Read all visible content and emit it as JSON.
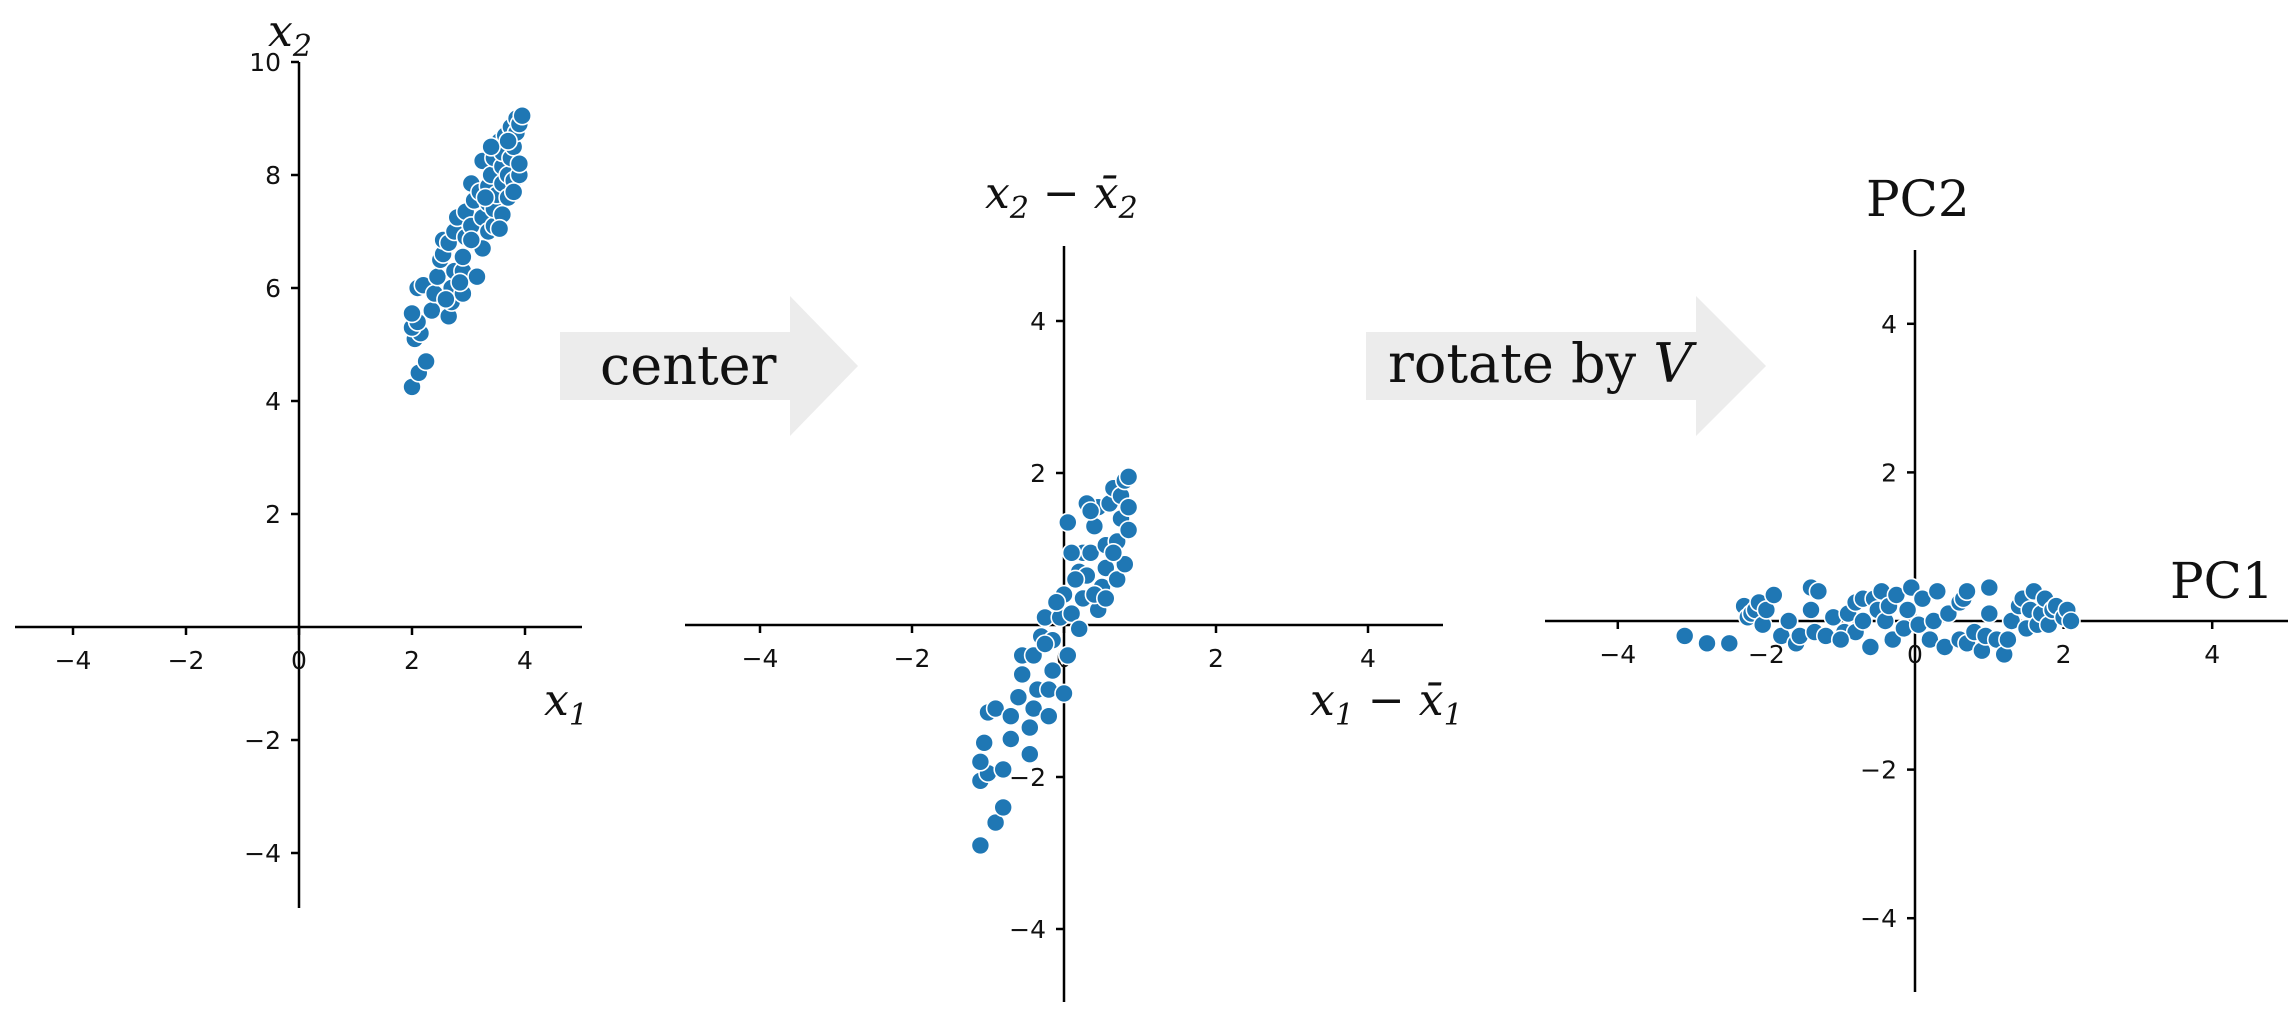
{
  "colors": {
    "points": "#1f77b4",
    "point_edge": "#ffffff",
    "arrow": "#ececec",
    "axis": "#000000"
  },
  "arrows": [
    {
      "label": "center",
      "italic": ""
    },
    {
      "label": "rotate by ",
      "italic": "V"
    }
  ],
  "chart_data": [
    {
      "type": "scatter",
      "panel": "original",
      "xlabel": {
        "var": "x",
        "sub": "1"
      },
      "ylabel": {
        "var": "x",
        "sub": "2"
      },
      "xlim": [
        -5,
        5
      ],
      "ylim": [
        -5,
        10
      ],
      "xticks": [
        -4,
        -2,
        0,
        2,
        4
      ],
      "yticks": [
        -4,
        -2,
        0,
        2,
        4,
        6,
        8,
        10
      ],
      "tick_labels_x": [
        "−4",
        "−2",
        "0",
        "2",
        "4"
      ],
      "tick_labels_y": [
        "−4",
        "−2",
        "0",
        "2",
        "4",
        "6",
        "8",
        "10"
      ],
      "points": [
        [
          2.0,
          4.25
        ],
        [
          2.12,
          4.5
        ],
        [
          2.25,
          4.7
        ],
        [
          2.05,
          5.1
        ],
        [
          2.15,
          5.2
        ],
        [
          2.0,
          5.3
        ],
        [
          2.1,
          5.4
        ],
        [
          2.0,
          5.55
        ],
        [
          2.1,
          6.0
        ],
        [
          2.2,
          6.05
        ],
        [
          2.35,
          5.6
        ],
        [
          2.4,
          5.9
        ],
        [
          2.45,
          6.2
        ],
        [
          2.5,
          6.5
        ],
        [
          2.55,
          6.6
        ],
        [
          2.55,
          6.85
        ],
        [
          2.65,
          5.5
        ],
        [
          2.7,
          5.75
        ],
        [
          2.7,
          6.0
        ],
        [
          2.75,
          6.3
        ],
        [
          2.65,
          6.8
        ],
        [
          2.75,
          7.0
        ],
        [
          2.8,
          7.25
        ],
        [
          2.9,
          5.9
        ],
        [
          2.9,
          6.3
        ],
        [
          2.9,
          6.55
        ],
        [
          2.95,
          6.9
        ],
        [
          2.95,
          7.35
        ],
        [
          3.05,
          7.1
        ],
        [
          3.1,
          7.55
        ],
        [
          3.05,
          7.85
        ],
        [
          3.15,
          6.2
        ],
        [
          3.25,
          6.7
        ],
        [
          3.25,
          7.25
        ],
        [
          3.2,
          7.7
        ],
        [
          3.25,
          8.25
        ],
        [
          3.35,
          7.0
        ],
        [
          3.35,
          7.5
        ],
        [
          3.35,
          7.8
        ],
        [
          3.4,
          8.0
        ],
        [
          3.45,
          7.1
        ],
        [
          3.45,
          7.4
        ],
        [
          3.5,
          7.65
        ],
        [
          3.45,
          8.3
        ],
        [
          3.55,
          8.6
        ],
        [
          3.6,
          7.3
        ],
        [
          3.6,
          7.85
        ],
        [
          3.6,
          8.15
        ],
        [
          3.6,
          8.4
        ],
        [
          3.65,
          8.7
        ],
        [
          3.7,
          7.6
        ],
        [
          3.7,
          8.0
        ],
        [
          3.75,
          8.3
        ],
        [
          3.75,
          8.85
        ],
        [
          3.8,
          7.9
        ],
        [
          3.8,
          8.5
        ],
        [
          3.85,
          8.75
        ],
        [
          3.85,
          9.0
        ],
        [
          3.9,
          8.0
        ],
        [
          3.9,
          8.2
        ],
        [
          3.9,
          8.9
        ],
        [
          3.95,
          9.05
        ],
        [
          3.3,
          7.6
        ],
        [
          3.55,
          7.05
        ],
        [
          3.05,
          6.85
        ],
        [
          2.85,
          6.1
        ],
        [
          2.6,
          5.8
        ],
        [
          3.4,
          8.5
        ],
        [
          3.7,
          8.6
        ],
        [
          3.8,
          7.7
        ]
      ]
    },
    {
      "type": "scatter",
      "panel": "centered",
      "xlabel": {
        "var": "x",
        "sub": "1",
        "minus": "x̄",
        "sub2": "1"
      },
      "ylabel": {
        "var": "x",
        "sub": "2",
        "minus": "x̄",
        "sub2": "2"
      },
      "xlim": [
        -5,
        5
      ],
      "ylim": [
        -5,
        5
      ],
      "xticks": [
        -4,
        -2,
        0,
        2,
        4
      ],
      "yticks": [
        -4,
        -2,
        0,
        2,
        4
      ],
      "tick_labels_x": [
        "−4",
        "−2",
        "0",
        "2",
        "4"
      ],
      "tick_labels_y": [
        "−4",
        "−2",
        "0",
        "2",
        "4"
      ],
      "points": [
        [
          -1.1,
          -2.9
        ],
        [
          -0.9,
          -2.6
        ],
        [
          -0.8,
          -2.4
        ],
        [
          -1.1,
          -2.05
        ],
        [
          -1.0,
          -1.95
        ],
        [
          -1.1,
          -1.8
        ],
        [
          -1.05,
          -1.55
        ],
        [
          -1.0,
          -1.15
        ],
        [
          -0.9,
          -1.1
        ],
        [
          -0.8,
          -1.9
        ],
        [
          -0.7,
          -1.5
        ],
        [
          -0.7,
          -1.2
        ],
        [
          -0.6,
          -0.95
        ],
        [
          -0.55,
          -0.65
        ],
        [
          -0.55,
          -0.4
        ],
        [
          -0.45,
          -1.7
        ],
        [
          -0.45,
          -1.35
        ],
        [
          -0.4,
          -1.1
        ],
        [
          -0.35,
          -0.85
        ],
        [
          -0.4,
          -0.4
        ],
        [
          -0.3,
          -0.15
        ],
        [
          -0.25,
          0.1
        ],
        [
          -0.2,
          -1.2
        ],
        [
          -0.2,
          -0.85
        ],
        [
          -0.15,
          -0.6
        ],
        [
          -0.15,
          -0.2
        ],
        [
          -0.05,
          0.1
        ],
        [
          0.0,
          0.4
        ],
        [
          0.0,
          -0.9
        ],
        [
          0.05,
          -0.4
        ],
        [
          0.1,
          0.15
        ],
        [
          0.2,
          -0.05
        ],
        [
          0.2,
          0.7
        ],
        [
          0.25,
          0.95
        ],
        [
          0.25,
          0.35
        ],
        [
          0.3,
          0.65
        ],
        [
          0.35,
          0.95
        ],
        [
          0.4,
          1.3
        ],
        [
          0.45,
          1.55
        ],
        [
          0.45,
          0.2
        ],
        [
          0.5,
          0.5
        ],
        [
          0.55,
          0.75
        ],
        [
          0.55,
          1.05
        ],
        [
          0.6,
          1.6
        ],
        [
          0.65,
          1.8
        ],
        [
          0.7,
          0.6
        ],
        [
          0.7,
          1.1
        ],
        [
          0.75,
          1.4
        ],
        [
          0.75,
          1.7
        ],
        [
          0.8,
          1.9
        ],
        [
          0.8,
          0.8
        ],
        [
          0.85,
          1.25
        ],
        [
          0.85,
          1.55
        ],
        [
          0.85,
          1.95
        ],
        [
          0.1,
          0.95
        ],
        [
          0.05,
          1.35
        ],
        [
          0.3,
          1.6
        ],
        [
          0.4,
          0.4
        ],
        [
          -0.1,
          0.3
        ],
        [
          0.15,
          0.6
        ],
        [
          -0.25,
          -0.25
        ],
        [
          0.55,
          0.35
        ],
        [
          0.35,
          1.5
        ],
        [
          0.65,
          0.95
        ]
      ]
    },
    {
      "type": "scatter",
      "panel": "rotated",
      "xlabel": {
        "text": "PC1"
      },
      "ylabel": {
        "text": "PC2"
      },
      "xlim": [
        -5,
        5
      ],
      "ylim": [
        -5,
        5
      ],
      "xticks": [
        -4,
        -2,
        0,
        2,
        4
      ],
      "yticks": [
        -4,
        -2,
        0,
        2,
        4
      ],
      "tick_labels_x": [
        "−4",
        "−2",
        "0",
        "2",
        "4"
      ],
      "tick_labels_y": [
        "−4",
        "−2",
        "0",
        "2",
        "4"
      ],
      "points": [
        [
          -3.1,
          -0.2
        ],
        [
          -2.8,
          -0.3
        ],
        [
          -2.5,
          -0.3
        ],
        [
          -2.3,
          0.2
        ],
        [
          -2.25,
          0.05
        ],
        [
          -2.2,
          0.1
        ],
        [
          -2.15,
          0.15
        ],
        [
          -2.1,
          0.25
        ],
        [
          -2.05,
          -0.05
        ],
        [
          -2.0,
          0.15
        ],
        [
          -1.9,
          0.35
        ],
        [
          -1.8,
          -0.2
        ],
        [
          -1.7,
          0.0
        ],
        [
          -1.6,
          -0.3
        ],
        [
          -1.55,
          -0.2
        ],
        [
          -1.4,
          0.15
        ],
        [
          -1.4,
          0.45
        ],
        [
          -1.35,
          -0.15
        ],
        [
          -1.3,
          0.4
        ],
        [
          -1.2,
          -0.2
        ],
        [
          -1.1,
          0.05
        ],
        [
          -0.95,
          -0.15
        ],
        [
          -0.9,
          0.1
        ],
        [
          -0.8,
          0.25
        ],
        [
          -0.8,
          -0.15
        ],
        [
          -0.7,
          0.3
        ],
        [
          -0.7,
          0.0
        ],
        [
          -0.6,
          -0.35
        ],
        [
          -0.55,
          0.3
        ],
        [
          -0.5,
          0.15
        ],
        [
          -0.45,
          0.4
        ],
        [
          -0.4,
          0.0
        ],
        [
          -0.35,
          0.2
        ],
        [
          -0.3,
          -0.25
        ],
        [
          -0.25,
          0.35
        ],
        [
          -0.15,
          -0.1
        ],
        [
          -0.1,
          0.15
        ],
        [
          -0.05,
          0.45
        ],
        [
          0.05,
          -0.05
        ],
        [
          0.1,
          0.3
        ],
        [
          0.2,
          -0.25
        ],
        [
          0.25,
          0.0
        ],
        [
          0.4,
          -0.35
        ],
        [
          0.45,
          0.1
        ],
        [
          0.6,
          -0.25
        ],
        [
          0.6,
          0.25
        ],
        [
          0.65,
          0.3
        ],
        [
          0.7,
          -0.3
        ],
        [
          0.7,
          0.4
        ],
        [
          0.8,
          -0.15
        ],
        [
          0.9,
          -0.4
        ],
        [
          0.95,
          -0.2
        ],
        [
          1.0,
          0.1
        ],
        [
          1.0,
          0.45
        ],
        [
          1.1,
          -0.25
        ],
        [
          1.2,
          -0.45
        ],
        [
          1.25,
          -0.25
        ],
        [
          1.3,
          0.0
        ],
        [
          1.4,
          0.2
        ],
        [
          1.45,
          0.3
        ],
        [
          1.5,
          -0.1
        ],
        [
          1.55,
          0.15
        ],
        [
          1.6,
          0.4
        ],
        [
          1.65,
          -0.05
        ],
        [
          1.7,
          0.1
        ],
        [
          1.75,
          0.3
        ],
        [
          1.8,
          -0.05
        ],
        [
          1.85,
          0.15
        ],
        [
          1.9,
          0.2
        ],
        [
          2.0,
          0.05
        ],
        [
          2.05,
          0.15
        ],
        [
          2.1,
          0.0
        ],
        [
          -1.0,
          -0.25
        ],
        [
          0.3,
          0.4
        ]
      ]
    }
  ]
}
